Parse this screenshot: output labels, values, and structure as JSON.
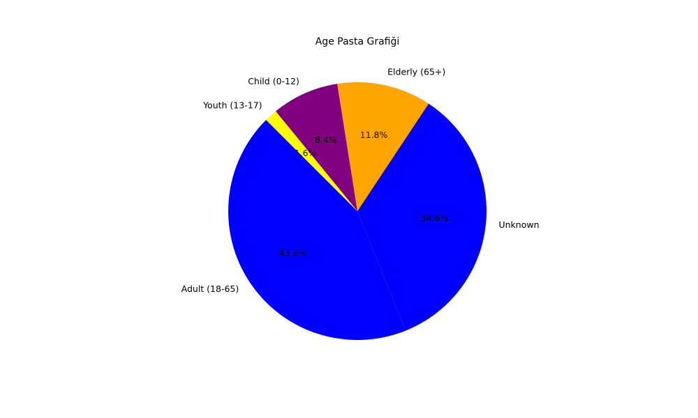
{
  "chart_data": {
    "type": "pie",
    "title": "Age Pasta Grafiği",
    "start_angle_deg": 135,
    "direction": "counterclockwise",
    "slices": [
      {
        "label": "Adult (18-65)",
        "value": 43.6,
        "pct_label": "43.6%",
        "color": "#0000ff"
      },
      {
        "label": "Unknown",
        "value": 34.6,
        "pct_label": "34.6%",
        "color": "#0000ff"
      },
      {
        "label": "Elderly (65+)",
        "value": 11.8,
        "pct_label": "11.8%",
        "color": "#ffa500"
      },
      {
        "label": "Child (0-12)",
        "value": 8.4,
        "pct_label": "8.4%",
        "color": "#800080"
      },
      {
        "label": "Youth (13-17)",
        "value": 1.6,
        "pct_label": "1.6%",
        "color": "#ffff00"
      }
    ]
  }
}
